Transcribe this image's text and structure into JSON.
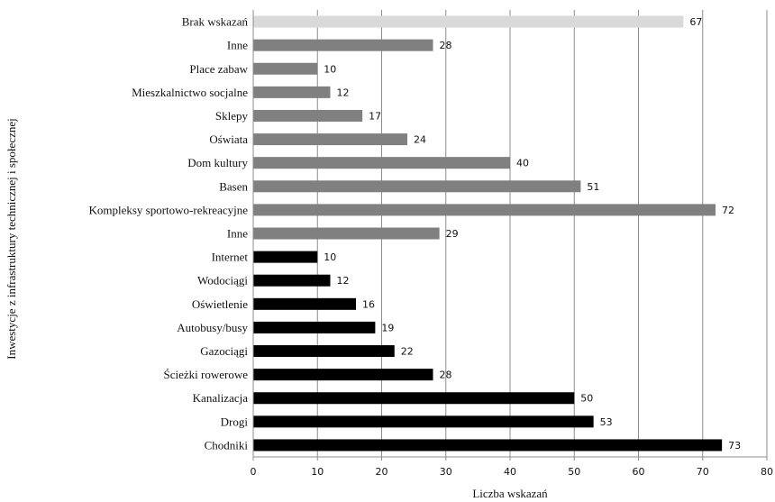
{
  "chart_data": {
    "type": "bar",
    "orientation": "horizontal",
    "xlabel": "Liczba wskazań",
    "ylabel": "Inwestycje z infrastruktury technicznej i społecznej",
    "xlim": [
      0,
      80
    ],
    "xticks": [
      0,
      10,
      20,
      30,
      40,
      50,
      60,
      70,
      80
    ],
    "grid": "vertical",
    "categories": [
      "Brak wskazań",
      "Inne",
      "Place zabaw",
      "Mieszkalnictwo socjalne",
      "Sklepy",
      "Oświata",
      "Dom kultury",
      "Basen",
      "Kompleksy sportowo-rekreacyjne",
      "Inne",
      "Internet",
      "Wodociągi",
      "Oświetlenie",
      "Autobusy/busy",
      "Gazociągi",
      "Ścieżki rowerowe",
      "Kanalizacja",
      "Drogi",
      "Chodniki"
    ],
    "values": [
      67,
      28,
      10,
      12,
      17,
      24,
      40,
      51,
      72,
      29,
      10,
      12,
      16,
      19,
      22,
      28,
      50,
      53,
      73
    ],
    "bar_colors": [
      "#d9d9d9",
      "#808080",
      "#808080",
      "#808080",
      "#808080",
      "#808080",
      "#808080",
      "#808080",
      "#808080",
      "#808080",
      "#000000",
      "#000000",
      "#000000",
      "#000000",
      "#000000",
      "#000000",
      "#000000",
      "#000000",
      "#000000"
    ]
  }
}
